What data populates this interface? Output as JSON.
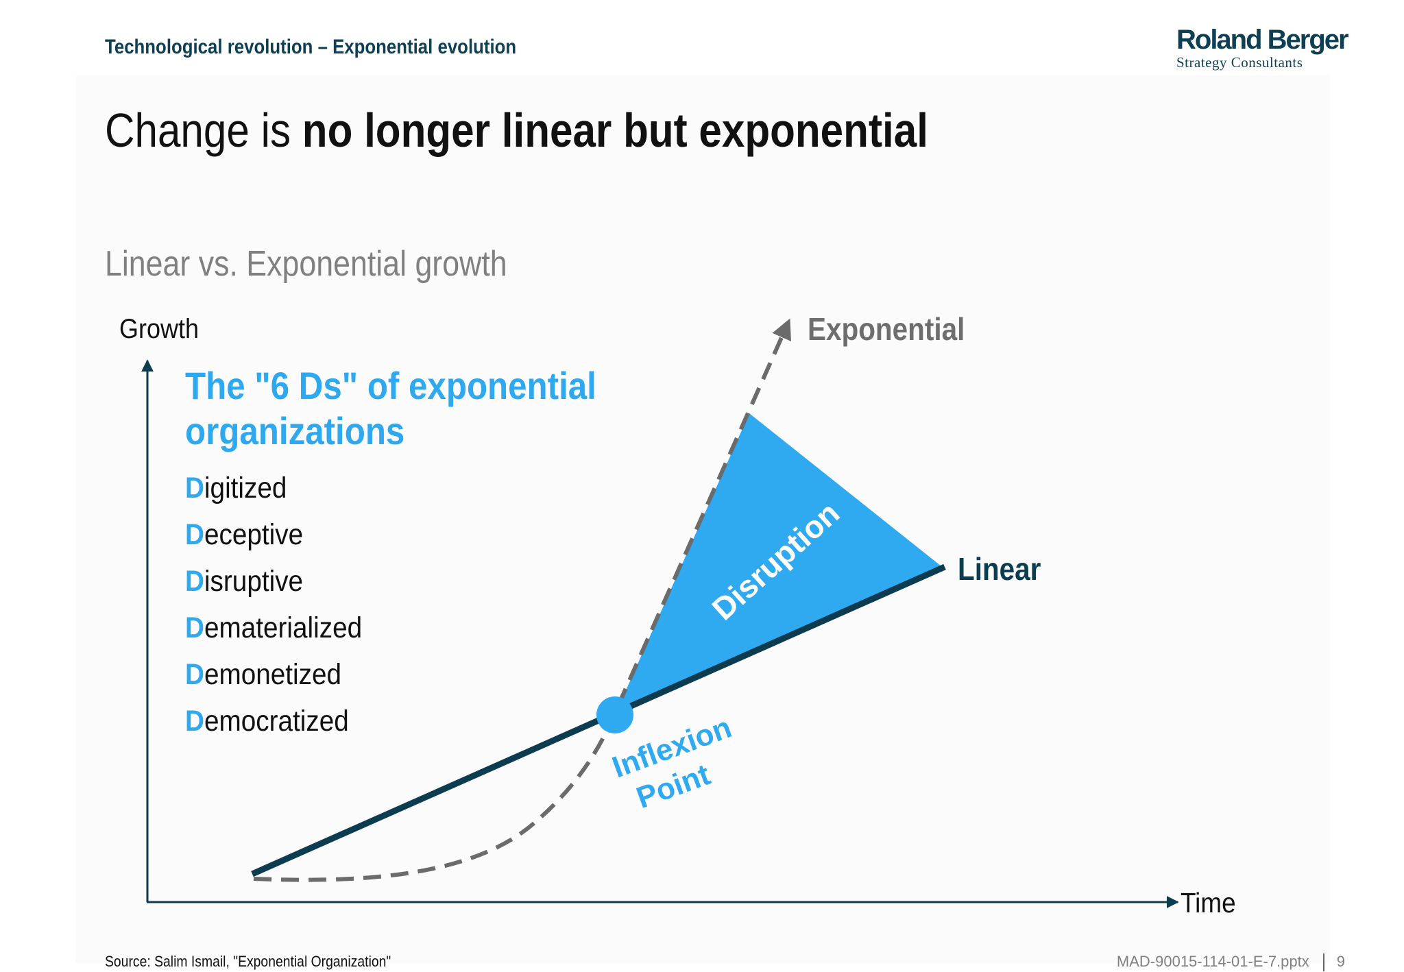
{
  "header": {
    "section_title": "Technological revolution – Exponential evolution",
    "logo": {
      "name": "Roland Berger",
      "tagline": "Strategy Consultants"
    }
  },
  "main_title": {
    "regular": "Change is ",
    "bold": "no longer linear but exponential"
  },
  "subtitle": "Linear vs. Exponential growth",
  "six_ds": {
    "title_line1": "The \"6 Ds\" of exponential",
    "title_line2": "organizations",
    "items": [
      {
        "initial": "D",
        "rest": "igitized"
      },
      {
        "initial": "D",
        "rest": "eceptive"
      },
      {
        "initial": "D",
        "rest": "isruptive"
      },
      {
        "initial": "D",
        "rest": "ematerialized"
      },
      {
        "initial": "D",
        "rest": "emonetized"
      },
      {
        "initial": "D",
        "rest": "emocratized"
      }
    ]
  },
  "diagram": {
    "y_axis_label": "Growth",
    "x_axis_label": "Time",
    "exponential_label": "Exponential",
    "linear_label": "Linear",
    "disruption_label": "Disruption",
    "inflexion_line1": "Inflexion",
    "inflexion_line2": "Point",
    "colors": {
      "linear_line": "#0d3b4f",
      "exponential_dashed": "#6b6b6b",
      "disruption_fill": "#2fa9f0",
      "inflexion_point": "#2fa9f0",
      "axis": "#0d3b4f"
    }
  },
  "footer": {
    "source": "Source: Salim Ismail, \"Exponential Organization\"",
    "document_id": "MAD-90015-114-01-E-7.pptx",
    "page_number": "9"
  }
}
